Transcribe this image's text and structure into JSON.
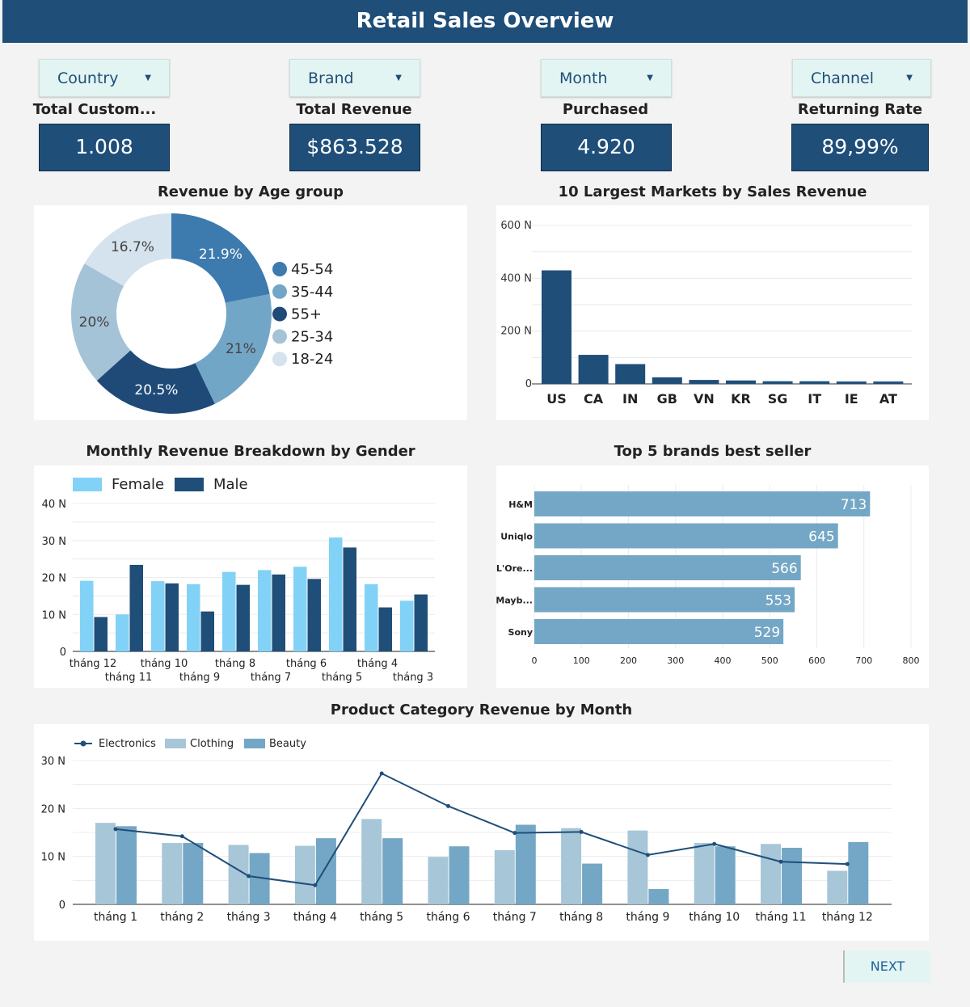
{
  "header": {
    "title": "Retail Sales Overview"
  },
  "filters": [
    {
      "label": "Country"
    },
    {
      "label": "Brand"
    },
    {
      "label": "Month"
    },
    {
      "label": "Channel"
    }
  ],
  "kpis": [
    {
      "label": "Total Custom...",
      "value": "1.008"
    },
    {
      "label": "Total Revenue",
      "value": "$863.528"
    },
    {
      "label": "Purchased",
      "value": "4.920"
    },
    {
      "label": "Returning Rate",
      "value": "89,99%"
    }
  ],
  "next_label": "NEXT",
  "chart_data": [
    {
      "id": "age",
      "type": "pie",
      "title": "Revenue by Age group",
      "donut": true,
      "legend": "right",
      "labels": [
        "45-54",
        "35-44",
        "55+",
        "25-34",
        "18-24"
      ],
      "values": [
        21.9,
        21,
        20.5,
        20,
        16.7
      ],
      "value_labels": [
        "21.9%",
        "21%",
        "20.5%",
        "20%",
        "16.7%"
      ],
      "colors": [
        "#3d7aae",
        "#72a6c6",
        "#1f4a78",
        "#a5c3d6",
        "#d4e3ed"
      ]
    },
    {
      "id": "markets",
      "type": "bar",
      "title": "10 Largest Markets by Sales Revenue",
      "categories": [
        "US",
        "CA",
        "IN",
        "GB",
        "VN",
        "KR",
        "SG",
        "IT",
        "IE",
        "AT"
      ],
      "values": [
        430,
        110,
        75,
        25,
        15,
        13,
        10,
        10,
        9,
        9
      ],
      "ylim": [
        0,
        600
      ],
      "yticks": [
        "0",
        "200 N",
        "400 N",
        "600 N"
      ],
      "grid": true,
      "color": "#1f4e79"
    },
    {
      "id": "gender",
      "type": "bar",
      "title": "Monthly Revenue Breakdown by Gender",
      "legend": "top-left",
      "categories": [
        "tháng 12",
        "tháng 11",
        "tháng 10",
        "tháng 9",
        "tháng 8",
        "tháng 7",
        "tháng 6",
        "tháng 5",
        "tháng 4",
        "tháng 3"
      ],
      "series": [
        {
          "name": "Female",
          "color": "#82d2f7",
          "values": [
            19.1,
            10,
            19,
            18.2,
            21.5,
            22,
            22.9,
            30.8,
            18.2,
            13.7
          ]
        },
        {
          "name": "Male",
          "color": "#1f4e79",
          "values": [
            9.3,
            23.4,
            18.4,
            10.8,
            18,
            20.8,
            19.6,
            28.1,
            11.9,
            15.4
          ]
        }
      ],
      "ylim": [
        0,
        40
      ],
      "yticks": [
        "0",
        "10 N",
        "20 N",
        "30 N",
        "40 N"
      ],
      "grid": true
    },
    {
      "id": "brands",
      "type": "bar",
      "orientation": "horizontal",
      "title": "Top 5 brands best seller",
      "categories": [
        "H&M",
        "Uniqlo",
        "L'Ore...",
        "Mayb...",
        "Sony"
      ],
      "values": [
        713,
        645,
        566,
        553,
        529
      ],
      "xlim": [
        0,
        800
      ],
      "xticks": [
        "0",
        "100",
        "200",
        "300",
        "400",
        "500",
        "600",
        "700",
        "800"
      ],
      "grid": true,
      "color": "#74a7c5"
    },
    {
      "id": "product",
      "type": "bar",
      "title": "Product Category Revenue by Month",
      "legend": "top-left",
      "categories": [
        "tháng 1",
        "tháng 2",
        "tháng 3",
        "tháng 4",
        "tháng 5",
        "tháng 6",
        "tháng 7",
        "tháng 8",
        "tháng 9",
        "tháng 10",
        "tháng 11",
        "tháng 12"
      ],
      "series": [
        {
          "name": "Electronics",
          "kind": "line",
          "color": "#1f4e79",
          "values": [
            15.7,
            14.2,
            5.9,
            4,
            27.3,
            20.5,
            14.9,
            15.1,
            10.3,
            12.6,
            8.9,
            8.4
          ]
        },
        {
          "name": "Clothing",
          "kind": "bar",
          "color": "#a7c6d8",
          "values": [
            17,
            12.8,
            12.4,
            12.2,
            17.8,
            9.9,
            11.3,
            15.9,
            15.4,
            12.8,
            12.6,
            7
          ]
        },
        {
          "name": "Beauty",
          "kind": "bar",
          "color": "#74a7c5",
          "values": [
            16.3,
            12.8,
            10.7,
            13.8,
            13.8,
            12.1,
            16.6,
            8.5,
            3.2,
            12.1,
            11.8,
            13
          ]
        }
      ],
      "ylim": [
        0,
        30
      ],
      "yticks": [
        "0",
        "10 N",
        "20 N",
        "30 N"
      ],
      "grid": true
    }
  ]
}
